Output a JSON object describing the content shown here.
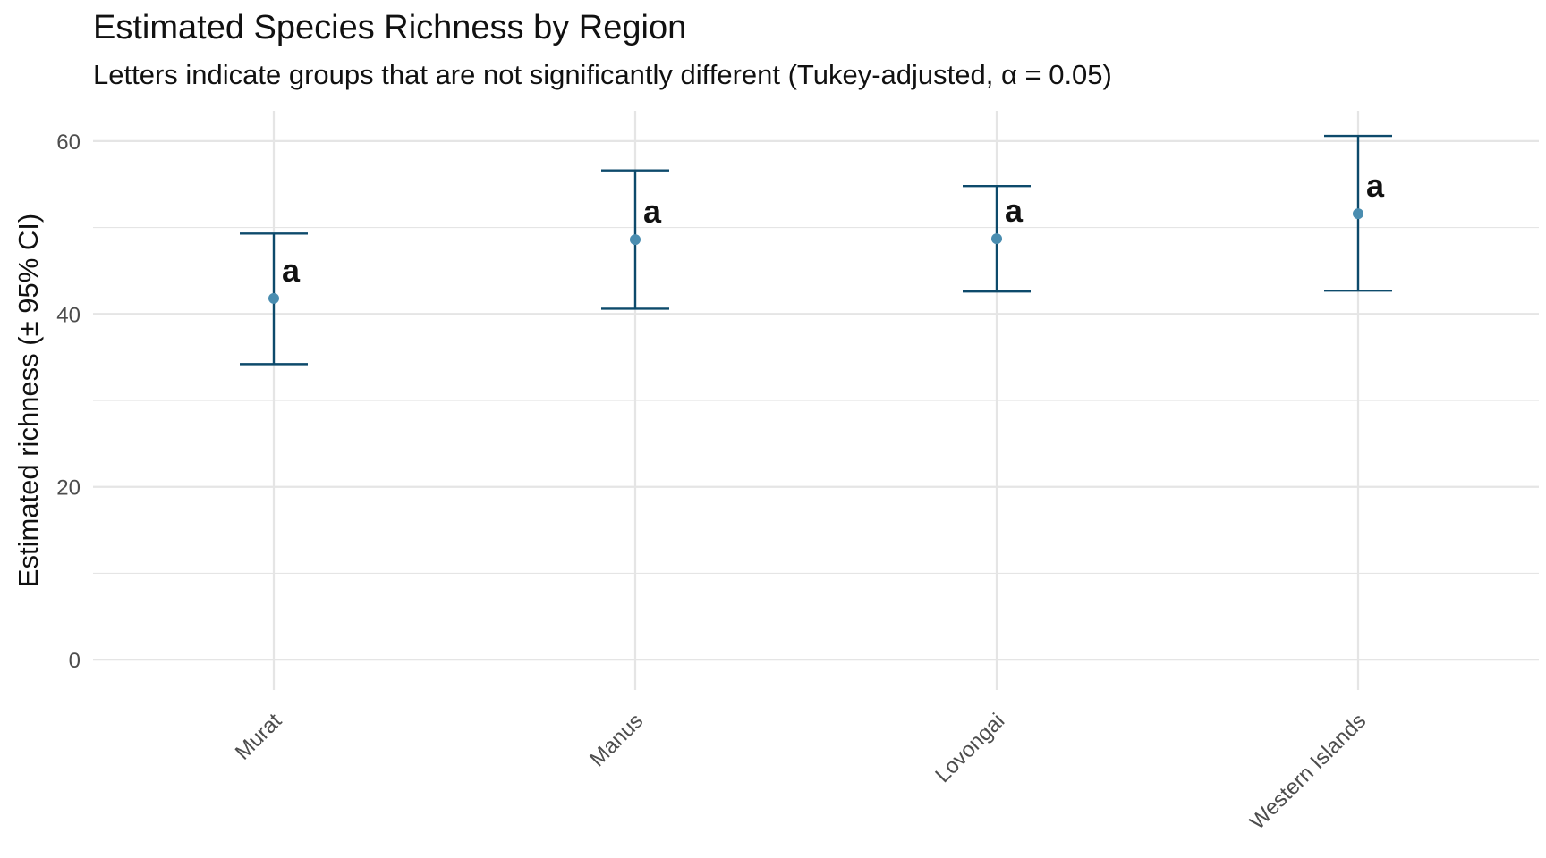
{
  "chart_data": {
    "type": "errorbar",
    "title": "Estimated Species Richness by Region",
    "subtitle": "Letters indicate groups that are not significantly different (Tukey-adjusted, α = 0.05)",
    "xlabel": "",
    "ylabel": "Estimated richness (± 95% CI)",
    "categories": [
      "Murat",
      "Manus",
      "Lovongai",
      "Western Islands"
    ],
    "estimate": [
      41.8,
      48.6,
      48.7,
      51.6
    ],
    "lower": [
      34.2,
      40.6,
      42.6,
      42.7
    ],
    "upper": [
      49.3,
      56.6,
      54.8,
      60.6
    ],
    "group_letters": [
      "a",
      "a",
      "a",
      "a"
    ],
    "ylim": [
      -3.5,
      63.5
    ],
    "yticks": [
      0,
      20,
      40,
      60
    ],
    "grid": true,
    "colors": {
      "point": "#4a8db0",
      "errorbar": "#0d4a6b",
      "grid": "#e5e5e5"
    }
  }
}
